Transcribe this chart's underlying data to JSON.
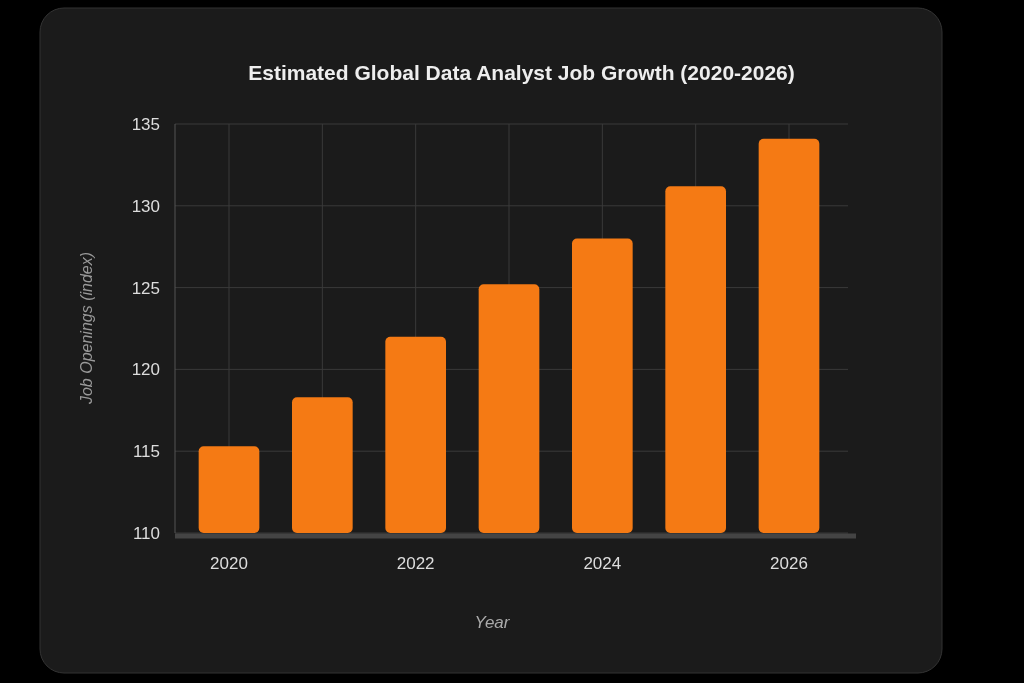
{
  "chart_data": {
    "type": "bar",
    "title": "Estimated Global Data Analyst Job Growth (2020-2026)",
    "xlabel": "Year",
    "ylabel": "Job Openings (index)",
    "categories": [
      "2020",
      null,
      "2022",
      null,
      "2024",
      null,
      "2026"
    ],
    "values": [
      115.3,
      118.3,
      122,
      125.2,
      128,
      131.2,
      134.1
    ],
    "color": "#f57a14",
    "ylim": [
      110,
      135
    ],
    "yticks": [
      110,
      115,
      120,
      125,
      130,
      135
    ],
    "grid": true
  }
}
